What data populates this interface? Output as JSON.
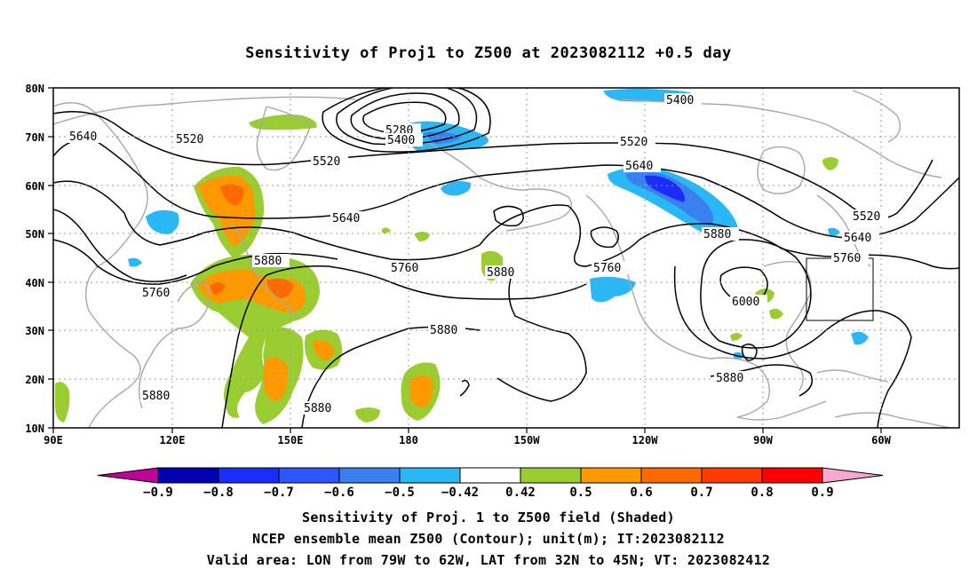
{
  "title": "Sensitivity of Proj1 to Z500 at 2023082112 +0.5 day",
  "axes": {
    "lat_ticks": [
      "80N",
      "70N",
      "60N",
      "50N",
      "40N",
      "30N",
      "20N",
      "10N"
    ],
    "lon_ticks": [
      "90E",
      "120E",
      "150E",
      "180",
      "150W",
      "120W",
      "90W",
      "60W"
    ]
  },
  "contour_labels": [
    {
      "text": "5640",
      "id": "5640-west"
    },
    {
      "text": "5520",
      "id": "5520-a"
    },
    {
      "text": "5520",
      "id": "5520-b"
    },
    {
      "text": "5280",
      "id": "5280"
    },
    {
      "text": "5400",
      "id": "5400-a"
    },
    {
      "text": "5400",
      "id": "5400-b"
    },
    {
      "text": "5520",
      "id": "5520-c"
    },
    {
      "text": "5640",
      "id": "5640-b"
    },
    {
      "text": "5640",
      "id": "5640-c"
    },
    {
      "text": "5520",
      "id": "5520-d"
    },
    {
      "text": "5640",
      "id": "5640-d"
    },
    {
      "text": "5880",
      "id": "5880-a"
    },
    {
      "text": "5760",
      "id": "5760-a"
    },
    {
      "text": "5760",
      "id": "5760-b"
    },
    {
      "text": "5880",
      "id": "5880-b"
    },
    {
      "text": "5880",
      "id": "5880-c"
    },
    {
      "text": "5760",
      "id": "5760-c"
    },
    {
      "text": "5880",
      "id": "5880-d"
    },
    {
      "text": "5760",
      "id": "5760-d"
    },
    {
      "text": "6000",
      "id": "6000"
    },
    {
      "text": "5880",
      "id": "5880-e"
    },
    {
      "text": "5880",
      "id": "5880-f"
    },
    {
      "text": "5880",
      "id": "5880-g"
    }
  ],
  "colorbar": {
    "labels": [
      "−0.9",
      "−0.8",
      "−0.7",
      "−0.6",
      "−0.5",
      "−0.42",
      "0.42",
      "0.5",
      "0.6",
      "0.7",
      "0.8",
      "0.9"
    ],
    "colors": [
      "#0000b0",
      "#1a2dfa",
      "#2e55ff",
      "#3a80f0",
      "#29b8f5",
      "#ffffff",
      "#9acd32",
      "#ff9900",
      "#ff6a00",
      "#ff3b00",
      "#ff0000"
    ],
    "low_arrow_color": "#c0009a",
    "high_arrow_color": "#f7a8cf"
  },
  "captions": [
    "Sensitivity of Proj. 1 to Z500 field (Shaded)",
    "NCEP ensemble mean Z500 (Contour); unit(m); IT:2023082112",
    "Valid area: LON from 79W to 62W, LAT from 32N to 45N; VT: 2023082412"
  ],
  "colors": {
    "coast": "#a8a8a8",
    "contour": "#000000",
    "grid": "#9a9a9a",
    "positive": "#9acd32",
    "positive_mid": "#ff9900",
    "positive_high": "#ff6a00",
    "negative": "#29b8f5",
    "negative_mid": "#3a80f0",
    "negative_high": "#1a2dfa"
  }
}
